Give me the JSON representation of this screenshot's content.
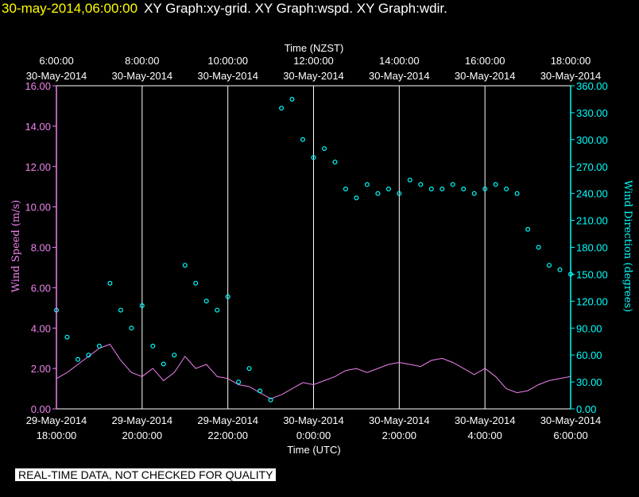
{
  "title": {
    "timestamp": "30-may-2014,06:00:00",
    "graphs": "XY Graph:xy-grid.  XY Graph:wspd.  XY Graph:wdir."
  },
  "quality_note": "REAL-TIME DATA, NOT CHECKED FOR QUALITY",
  "colors": {
    "speed": "#ee82ee",
    "direction": "#00ffff",
    "grid": "#ffffff",
    "text": "#ffffff"
  },
  "chart_data": {
    "type": "line",
    "top_axis_label": "Time (NZST)",
    "bottom_axis_label": "Time (UTC)",
    "left_axis_label": "Wind Speed (m/s)",
    "right_axis_label": "Wind Direction (degrees)",
    "x_range_utc_hours": [
      18,
      30
    ],
    "top_ticks": [
      {
        "time": "6:00:00",
        "date": "30-May-2014"
      },
      {
        "time": "8:00:00",
        "date": "30-May-2014"
      },
      {
        "time": "10:00:00",
        "date": "30-May-2014"
      },
      {
        "time": "12:00:00",
        "date": "30-May-2014"
      },
      {
        "time": "14:00:00",
        "date": "30-May-2014"
      },
      {
        "time": "16:00:00",
        "date": "30-May-2014"
      },
      {
        "time": "18:00:00",
        "date": "30-May-2014"
      }
    ],
    "bottom_ticks": [
      {
        "date": "29-May-2014",
        "time": "18:00:00"
      },
      {
        "date": "29-May-2014",
        "time": "20:00:00"
      },
      {
        "date": "29-May-2014",
        "time": "22:00:00"
      },
      {
        "date": "30-May-2014",
        "time": "0:00:00"
      },
      {
        "date": "30-May-2014",
        "time": "2:00:00"
      },
      {
        "date": "30-May-2014",
        "time": "4:00:00"
      },
      {
        "date": "30-May-2014",
        "time": "6:00:00"
      }
    ],
    "left_ylim": [
      0,
      16
    ],
    "left_ticks": [
      "0.00",
      "2.00",
      "4.00",
      "6.00",
      "8.00",
      "10.00",
      "12.00",
      "14.00",
      "16.00"
    ],
    "right_ylim": [
      0,
      360
    ],
    "right_ticks": [
      "0.00",
      "30.00",
      "60.00",
      "90.00",
      "120.00",
      "150.00",
      "180.00",
      "210.00",
      "240.00",
      "270.00",
      "300.00",
      "330.00",
      "360.00"
    ],
    "series": [
      {
        "name": "Wind Speed (m/s)",
        "kind": "line",
        "axis": "left",
        "x_hours": [
          18.0,
          18.25,
          18.5,
          18.75,
          19.0,
          19.25,
          19.5,
          19.75,
          20.0,
          20.25,
          20.5,
          20.75,
          21.0,
          21.25,
          21.5,
          21.75,
          22.0,
          22.25,
          22.5,
          22.75,
          23.0,
          23.25,
          23.5,
          23.75,
          24.0,
          24.25,
          24.5,
          24.75,
          25.0,
          25.25,
          25.5,
          25.75,
          26.0,
          26.25,
          26.5,
          26.75,
          27.0,
          27.25,
          27.5,
          27.75,
          28.0,
          28.25,
          28.5,
          28.75,
          29.0,
          29.25,
          29.5,
          29.75,
          30.0
        ],
        "values": [
          1.5,
          1.8,
          2.2,
          2.6,
          3.0,
          3.2,
          2.4,
          1.8,
          1.6,
          2.0,
          1.4,
          1.8,
          2.6,
          2.0,
          2.2,
          1.6,
          1.5,
          1.2,
          1.1,
          0.8,
          0.5,
          0.7,
          1.0,
          1.3,
          1.2,
          1.4,
          1.6,
          1.9,
          2.0,
          1.8,
          2.0,
          2.2,
          2.3,
          2.2,
          2.1,
          2.4,
          2.5,
          2.3,
          2.0,
          1.7,
          2.0,
          1.6,
          1.0,
          0.8,
          0.9,
          1.2,
          1.4,
          1.5,
          1.6
        ]
      },
      {
        "name": "Wind Direction (degrees)",
        "kind": "scatter",
        "axis": "right",
        "x_hours": [
          18.0,
          18.25,
          18.5,
          18.75,
          19.0,
          19.25,
          19.5,
          19.75,
          20.0,
          20.25,
          20.5,
          20.75,
          21.0,
          21.25,
          21.5,
          21.75,
          22.0,
          22.25,
          22.5,
          22.75,
          23.0,
          23.25,
          23.5,
          23.75,
          24.0,
          24.25,
          24.5,
          24.75,
          25.0,
          25.25,
          25.5,
          25.75,
          26.0,
          26.25,
          26.5,
          26.75,
          27.0,
          27.25,
          27.5,
          27.75,
          28.0,
          28.25,
          28.5,
          28.75,
          29.0,
          29.25,
          29.5,
          29.75,
          30.0
        ],
        "values": [
          110,
          80,
          55,
          60,
          70,
          140,
          110,
          90,
          115,
          70,
          50,
          60,
          160,
          140,
          120,
          110,
          125,
          30,
          45,
          20,
          10,
          335,
          345,
          300,
          280,
          290,
          275,
          245,
          235,
          250,
          240,
          245,
          240,
          255,
          250,
          245,
          245,
          250,
          245,
          240,
          245,
          250,
          245,
          240,
          200,
          180,
          160,
          155,
          150
        ]
      }
    ]
  }
}
